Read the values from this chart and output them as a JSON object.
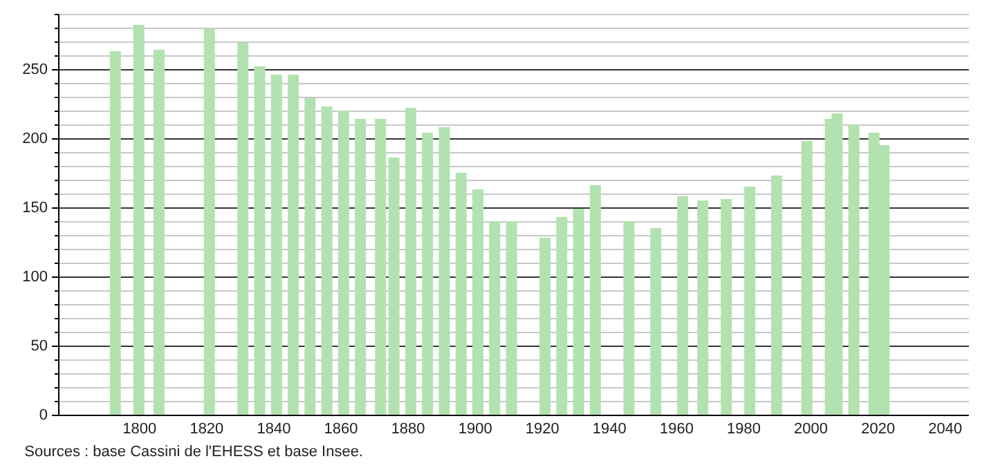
{
  "chart_data": {
    "type": "bar",
    "annotations": [
      "Sources : base Cassini de l'EHESS et base Insee."
    ],
    "x": [
      1793,
      1800,
      1806,
      1821,
      1831,
      1836,
      1841,
      1846,
      1851,
      1856,
      1861,
      1866,
      1872,
      1876,
      1881,
      1886,
      1891,
      1896,
      1901,
      1906,
      1911,
      1921,
      1926,
      1931,
      1936,
      1946,
      1954,
      1962,
      1968,
      1975,
      1982,
      1990,
      1999,
      2006,
      2008,
      2013,
      2019,
      2022
    ],
    "values": [
      263,
      282,
      264,
      279,
      269,
      252,
      246,
      246,
      229,
      223,
      220,
      214,
      214,
      186,
      222,
      204,
      208,
      175,
      163,
      140,
      140,
      128,
      143,
      149,
      166,
      140,
      135,
      158,
      155,
      156,
      165,
      173,
      198,
      214,
      218,
      210,
      204,
      195
    ],
    "color": "#b2e2b0",
    "xlim": [
      1778,
      2045
    ],
    "xticks": [
      1800,
      1820,
      1840,
      1860,
      1880,
      1900,
      1920,
      1940,
      1960,
      1980,
      2000,
      2020,
      2040
    ],
    "ylim": [
      0,
      290
    ],
    "yticks": [
      0,
      {
        "value": 10,
        "label": null
      },
      {
        "value": 20,
        "label": null
      },
      {
        "value": 30,
        "label": null
      },
      {
        "value": 40,
        "label": null
      },
      50,
      {
        "value": 60,
        "label": null
      },
      {
        "value": 70,
        "label": null
      },
      {
        "value": 80,
        "label": null
      },
      {
        "value": 90,
        "label": null
      },
      100,
      {
        "value": 110,
        "label": null
      },
      {
        "value": 120,
        "label": null
      },
      {
        "value": 130,
        "label": null
      },
      {
        "value": 140,
        "label": null
      },
      150,
      {
        "value": 160,
        "label": null
      },
      {
        "value": 170,
        "label": null
      },
      {
        "value": 180,
        "label": null
      },
      {
        "value": 190,
        "label": null
      },
      200,
      {
        "value": 210,
        "label": null
      },
      {
        "value": 220,
        "label": null
      },
      {
        "value": 230,
        "label": null
      },
      {
        "value": 240,
        "label": null
      },
      250,
      {
        "value": 260,
        "label": null
      },
      {
        "value": 270,
        "label": null
      },
      {
        "value": 280,
        "label": null
      },
      {
        "value": 290,
        "label": null
      }
    ],
    "grid": "y"
  }
}
